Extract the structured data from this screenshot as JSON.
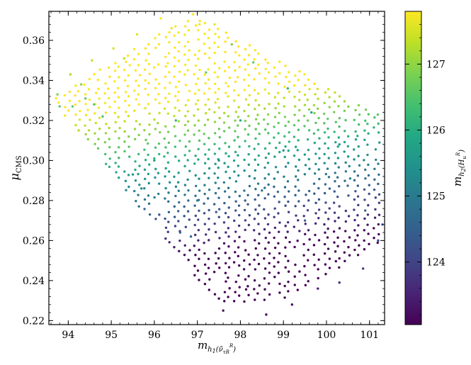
{
  "chart_data": {
    "type": "scatter",
    "xlabel": "m_{h_1(ν̃_{τR}^R)}",
    "ylabel": "μ_CMS",
    "xlim": [
      93.55,
      101.35
    ],
    "ylim": [
      0.218,
      0.3745
    ],
    "x_ticks": [
      94,
      95,
      96,
      97,
      98,
      99,
      100,
      101
    ],
    "y_ticks": [
      0.22,
      0.24,
      0.26,
      0.28,
      0.3,
      0.32,
      0.34,
      0.36
    ],
    "x_tick_labels": [
      "94",
      "95",
      "96",
      "97",
      "98",
      "99",
      "100",
      "101"
    ],
    "y_tick_labels": [
      "0.22",
      "0.24",
      "0.26",
      "0.28",
      "0.30",
      "0.32",
      "0.34",
      "0.36"
    ],
    "grid": false,
    "colorbar": {
      "label": "m_{h_2(H_u^R)}",
      "range": [
        123.05,
        127.8
      ],
      "ticks": [
        124,
        125,
        126,
        127
      ],
      "tick_labels": [
        "124",
        "125",
        "126",
        "127"
      ],
      "colormap": "viridis"
    },
    "point_count_approx": 900,
    "points_note": "Dense lattice of points forming a parallelogram region; color (m_h2) increases with mu_CMS and decreases with m_h1. Representative sample points (x, y, c):",
    "points": [
      [
        93.75,
        0.333,
        126.9
      ],
      [
        93.8,
        0.327,
        126.6
      ],
      [
        94.05,
        0.343,
        127.2
      ],
      [
        94.1,
        0.327,
        126.6
      ],
      [
        94.3,
        0.338,
        127.0
      ],
      [
        94.4,
        0.331,
        126.7
      ],
      [
        94.55,
        0.35,
        127.4
      ],
      [
        94.6,
        0.328,
        126.6
      ],
      [
        94.8,
        0.322,
        126.4
      ],
      [
        95.05,
        0.356,
        127.5
      ],
      [
        95.3,
        0.351,
        127.4
      ],
      [
        95.6,
        0.363,
        127.6
      ],
      [
        96.15,
        0.371,
        127.8
      ],
      [
        96.4,
        0.366,
        127.7
      ],
      [
        96.9,
        0.373,
        127.8
      ],
      [
        97.05,
        0.368,
        127.7
      ],
      [
        97.4,
        0.368,
        127.7
      ],
      [
        95.5,
        0.293,
        125.6
      ],
      [
        95.7,
        0.286,
        125.3
      ],
      [
        96.6,
        0.264,
        124.6
      ],
      [
        96.85,
        0.262,
        124.5
      ],
      [
        97.6,
        0.225,
        123.3
      ],
      [
        98.6,
        0.223,
        123.2
      ],
      [
        99.2,
        0.228,
        123.3
      ],
      [
        99.8,
        0.236,
        123.5
      ],
      [
        100.3,
        0.239,
        123.6
      ],
      [
        100.85,
        0.246,
        123.8
      ],
      [
        101.2,
        0.26,
        124.1
      ],
      [
        101.3,
        0.268,
        124.3
      ],
      [
        100.9,
        0.275,
        124.5
      ],
      [
        100.55,
        0.291,
        125.0
      ],
      [
        100.3,
        0.308,
        125.4
      ],
      [
        99.65,
        0.324,
        125.9
      ],
      [
        99.1,
        0.336,
        126.2
      ],
      [
        98.3,
        0.349,
        126.6
      ],
      [
        97.8,
        0.358,
        126.9
      ],
      [
        97.2,
        0.344,
        126.7
      ],
      [
        96.5,
        0.32,
        126.1
      ],
      [
        97.5,
        0.3,
        125.4
      ],
      [
        98.5,
        0.285,
        124.9
      ],
      [
        99.5,
        0.27,
        124.4
      ],
      [
        98.0,
        0.32,
        125.9
      ],
      [
        99.0,
        0.305,
        125.4
      ],
      [
        96.0,
        0.3,
        125.7
      ],
      [
        97.0,
        0.28,
        125.0
      ]
    ]
  }
}
